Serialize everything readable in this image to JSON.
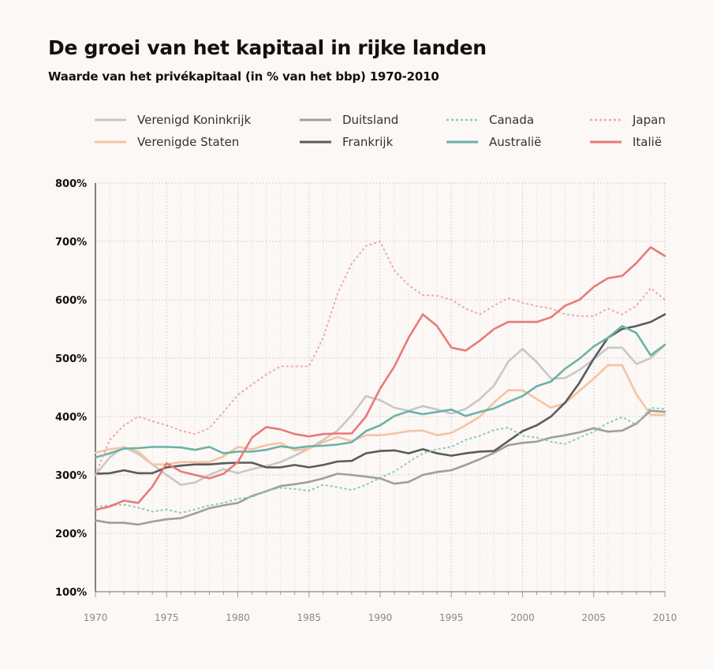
{
  "header": {
    "title": "De groei van het kapitaal in rijke landen",
    "subtitle": "Waarde van het privékapitaal (in % van het bbp) 1970-2010"
  },
  "chart_data": {
    "type": "line",
    "title": "De groei van het kapitaal in rijke landen",
    "subtitle": "Waarde van het privékapitaal (in % van het bbp) 1970-2010",
    "xlabel": "",
    "ylabel": "",
    "xlim": [
      1970,
      2010
    ],
    "ylim": [
      100,
      800
    ],
    "xticks": [
      1970,
      1975,
      1980,
      1985,
      1990,
      1995,
      2000,
      2005,
      2010
    ],
    "yticks": [
      100,
      200,
      300,
      400,
      500,
      600,
      700,
      800
    ],
    "ytick_labels": [
      "100%",
      "200%",
      "300%",
      "400%",
      "500%",
      "600%",
      "700%",
      "800%"
    ],
    "grid": true,
    "legend_position": "top",
    "x": [
      1970,
      1971,
      1972,
      1973,
      1974,
      1975,
      1976,
      1977,
      1978,
      1979,
      1980,
      1981,
      1982,
      1983,
      1984,
      1985,
      1986,
      1987,
      1988,
      1989,
      1990,
      1991,
      1992,
      1993,
      1994,
      1995,
      1996,
      1997,
      1998,
      1999,
      2000,
      2001,
      2002,
      2003,
      2004,
      2005,
      2006,
      2007,
      2008,
      2009,
      2010
    ],
    "series": [
      {
        "name": "Verenigd Koninkrijk",
        "color": "#c8c8c6",
        "dash": "solid",
        "values": [
          300,
          330,
          348,
          336,
          318,
          300,
          283,
          287,
          300,
          310,
          303,
          310,
          315,
          322,
          333,
          345,
          360,
          376,
          402,
          435,
          428,
          415,
          410,
          418,
          412,
          405,
          413,
          430,
          453,
          494,
          516,
          493,
          465,
          466,
          480,
          498,
          518,
          518,
          490,
          500,
          523
        ]
      },
      {
        "name": "Verenigde Staten",
        "color": "#f5c4a4",
        "dash": "solid",
        "values": [
          338,
          344,
          347,
          340,
          318,
          318,
          322,
          322,
          322,
          332,
          348,
          344,
          351,
          355,
          342,
          345,
          356,
          365,
          358,
          368,
          368,
          371,
          375,
          376,
          368,
          372,
          385,
          400,
          424,
          445,
          445,
          430,
          415,
          423,
          444,
          465,
          488,
          488,
          438,
          403,
          403
        ]
      },
      {
        "name": "Duitsland",
        "color": "#a19f96",
        "dash": "solid",
        "values": [
          222,
          218,
          218,
          215,
          220,
          224,
          226,
          234,
          243,
          248,
          252,
          264,
          272,
          281,
          284,
          288,
          294,
          302,
          300,
          297,
          294,
          285,
          288,
          300,
          305,
          308,
          317,
          327,
          338,
          351,
          355,
          357,
          364,
          368,
          373,
          380,
          374,
          376,
          388,
          410,
          408
        ]
      },
      {
        "name": "Frankrijk",
        "color": "#5b5b5b",
        "dash": "solid",
        "values": [
          302,
          303,
          308,
          303,
          303,
          313,
          316,
          318,
          318,
          320,
          321,
          321,
          313,
          313,
          317,
          313,
          317,
          323,
          324,
          337,
          341,
          342,
          337,
          344,
          337,
          333,
          337,
          340,
          341,
          358,
          375,
          385,
          400,
          424,
          458,
          499,
          535,
          550,
          555,
          562,
          575
        ]
      },
      {
        "name": "Canada",
        "color": "#8cc8be",
        "dash": "dotted",
        "values": [
          245,
          248,
          249,
          244,
          237,
          241,
          235,
          241,
          248,
          252,
          259,
          262,
          273,
          278,
          276,
          273,
          283,
          279,
          274,
          283,
          295,
          306,
          322,
          337,
          344,
          348,
          360,
          367,
          377,
          381,
          367,
          364,
          357,
          353,
          364,
          374,
          389,
          399,
          386,
          415,
          413
        ]
      },
      {
        "name": "Australië",
        "color": "#6bb2a8",
        "dash": "solid",
        "values": [
          330,
          337,
          345,
          346,
          348,
          348,
          347,
          343,
          348,
          337,
          340,
          340,
          343,
          349,
          346,
          349,
          350,
          352,
          356,
          375,
          385,
          401,
          409,
          404,
          408,
          412,
          401,
          408,
          414,
          425,
          435,
          452,
          460,
          482,
          499,
          520,
          535,
          555,
          543,
          505,
          523
        ]
      },
      {
        "name": "Japan",
        "color": "#f0aaa6",
        "dash": "dotted",
        "values": [
          300,
          360,
          385,
          400,
          392,
          385,
          376,
          370,
          380,
          408,
          437,
          455,
          472,
          486,
          486,
          486,
          535,
          610,
          662,
          692,
          700,
          650,
          625,
          608,
          607,
          600,
          585,
          575,
          590,
          603,
          595,
          589,
          585,
          575,
          572,
          572,
          585,
          575,
          590,
          620,
          600
        ]
      },
      {
        "name": "Italië",
        "color": "#e87a78",
        "dash": "solid",
        "values": [
          240,
          246,
          256,
          252,
          280,
          320,
          306,
          300,
          294,
          302,
          322,
          364,
          382,
          378,
          370,
          366,
          370,
          371,
          371,
          400,
          448,
          486,
          535,
          575,
          555,
          518,
          513,
          530,
          550,
          562,
          562,
          562,
          570,
          590,
          600,
          622,
          637,
          641,
          663,
          690,
          675
        ]
      }
    ]
  }
}
